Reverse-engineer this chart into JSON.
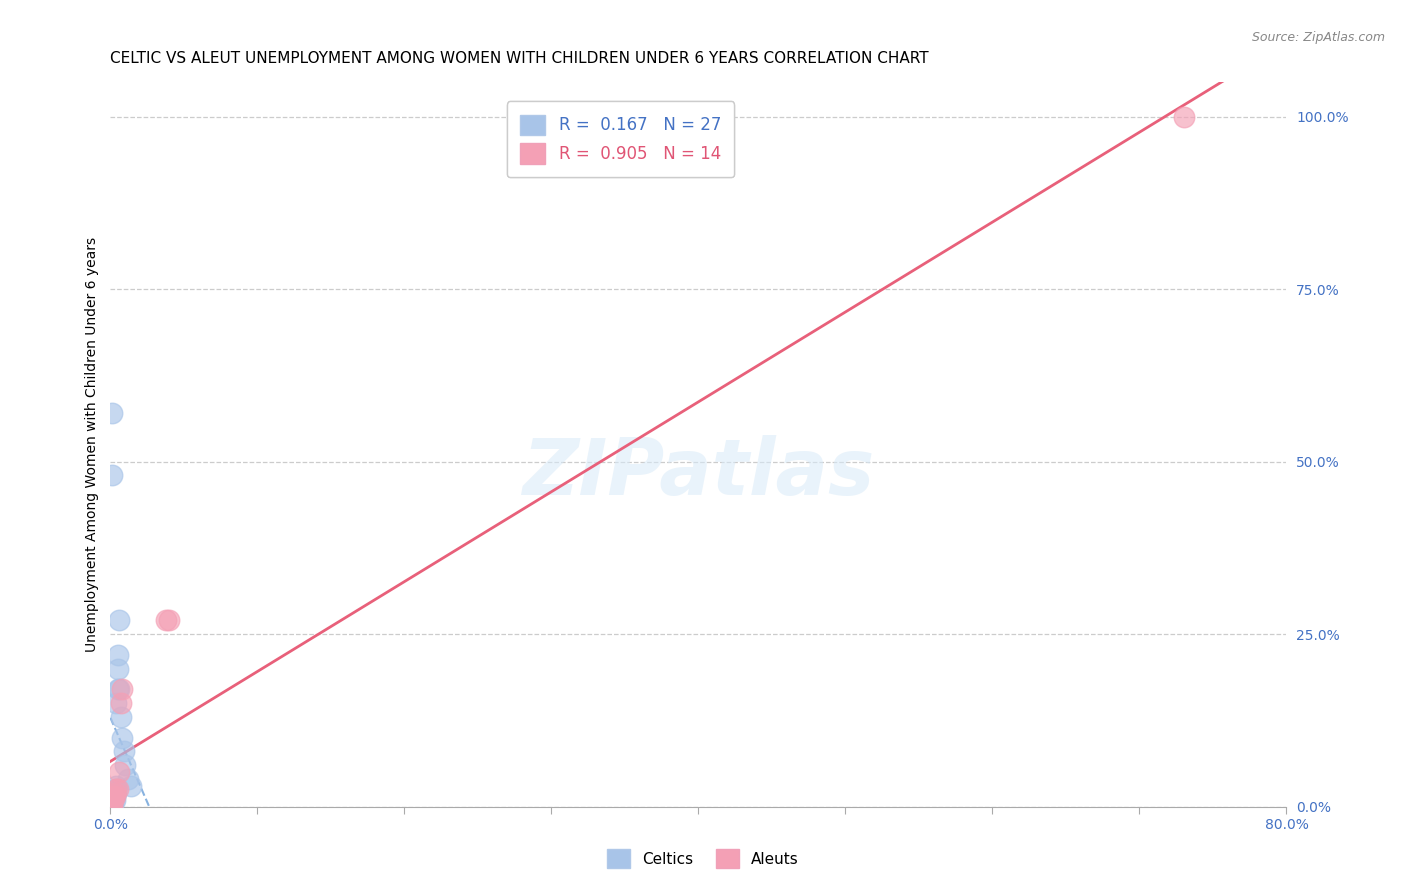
{
  "title": "CELTIC VS ALEUT UNEMPLOYMENT AMONG WOMEN WITH CHILDREN UNDER 6 YEARS CORRELATION CHART",
  "source": "Source: ZipAtlas.com",
  "ylabel": "Unemployment Among Women with Children Under 6 years",
  "xlim": [
    0.0,
    0.8
  ],
  "ylim": [
    0.0,
    1.05
  ],
  "xticks": [
    0.0,
    0.1,
    0.2,
    0.3,
    0.4,
    0.5,
    0.6,
    0.7,
    0.8
  ],
  "xticklabels": [
    "0.0%",
    "",
    "",
    "",
    "",
    "",
    "",
    "",
    "80.0%"
  ],
  "yticks": [
    0.0,
    0.25,
    0.5,
    0.75,
    1.0
  ],
  "yticklabels": [
    "0.0%",
    "25.0%",
    "50.0%",
    "75.0%",
    "100.0%"
  ],
  "celtic_color": "#a8c4e8",
  "aleut_color": "#f4a0b5",
  "celtic_line_color": "#6a9fd8",
  "aleut_line_color": "#e8607a",
  "legend_R_celtic": "0.167",
  "legend_N_celtic": "27",
  "legend_R_aleut": "0.905",
  "legend_N_aleut": "14",
  "celtic_x": [
    0.001,
    0.001,
    0.002,
    0.002,
    0.002,
    0.003,
    0.003,
    0.003,
    0.004,
    0.004,
    0.004,
    0.004,
    0.005,
    0.005,
    0.005,
    0.006,
    0.006,
    0.007,
    0.008,
    0.009,
    0.01,
    0.012,
    0.014,
    0.001,
    0.001,
    0.001,
    0.002
  ],
  "celtic_y": [
    0.0,
    0.005,
    0.005,
    0.01,
    0.015,
    0.01,
    0.015,
    0.02,
    0.02,
    0.025,
    0.03,
    0.15,
    0.17,
    0.2,
    0.22,
    0.27,
    0.17,
    0.13,
    0.1,
    0.08,
    0.06,
    0.04,
    0.03,
    0.48,
    0.57,
    0.02,
    0.02
  ],
  "aleut_x": [
    0.001,
    0.001,
    0.002,
    0.002,
    0.003,
    0.003,
    0.004,
    0.005,
    0.006,
    0.007,
    0.008,
    0.038,
    0.04,
    0.73
  ],
  "aleut_y": [
    0.0,
    0.005,
    0.01,
    0.015,
    0.015,
    0.02,
    0.025,
    0.025,
    0.05,
    0.15,
    0.17,
    0.27,
    0.27,
    1.0
  ],
  "celtic_line_x0": 0.0,
  "celtic_line_x1": 0.42,
  "aleut_line_x0": 0.0,
  "aleut_line_x1": 0.8,
  "background_color": "#ffffff",
  "grid_color": "#cccccc",
  "title_fontsize": 11,
  "axis_label_fontsize": 10,
  "tick_fontsize": 10,
  "legend_fontsize": 12
}
